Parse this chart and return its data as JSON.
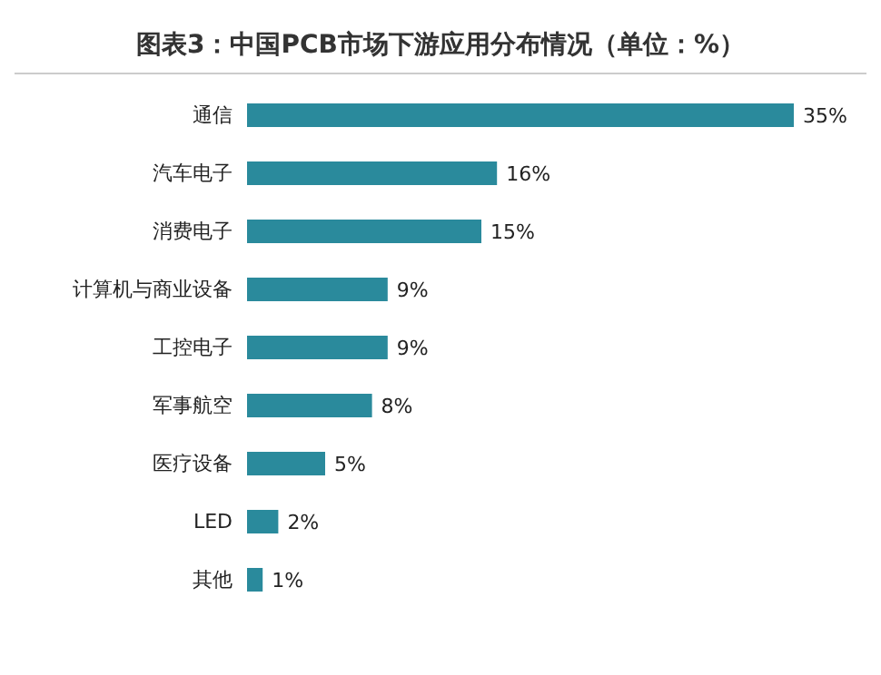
{
  "chart_data": {
    "type": "bar",
    "orientation": "horizontal",
    "title": "图表3：中国PCB市场下游应用分布情况（单位：%）",
    "categories": [
      "通信",
      "汽车电子",
      "消费电子",
      "计算机与商业设备",
      "工控电子",
      "军事航空",
      "医疗设备",
      "LED",
      "其他"
    ],
    "values": [
      35,
      16,
      15,
      9,
      9,
      8,
      5,
      2,
      1
    ],
    "value_labels": [
      "35%",
      "16%",
      "15%",
      "9%",
      "9%",
      "8%",
      "5%",
      "2%",
      "1%"
    ],
    "color": "#2a8a9c"
  }
}
